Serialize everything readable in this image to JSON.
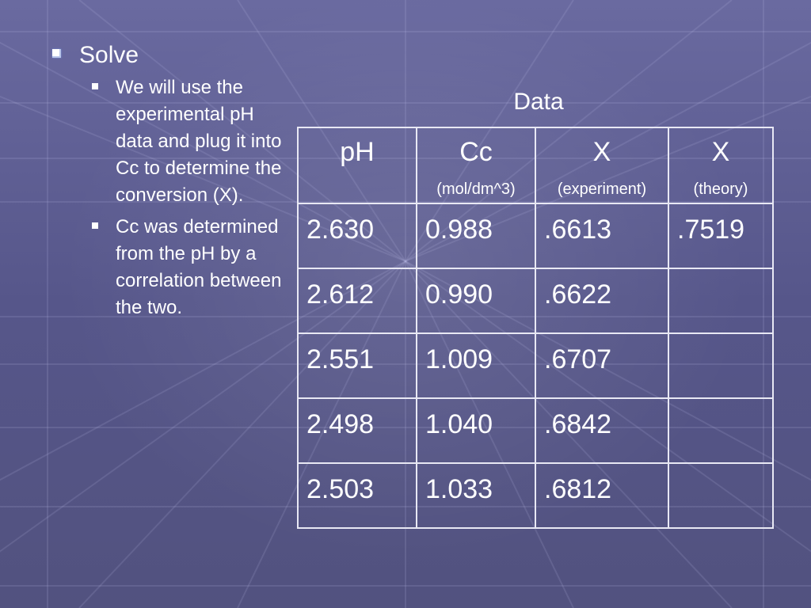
{
  "bullets": {
    "heading": "Solve",
    "items": [
      "We will use the experimental pH data and plug it into Cc to determine the conversion (X).",
      "Cc was determined from the pH by a correlation between the two."
    ]
  },
  "table": {
    "title": "Data",
    "headers": [
      {
        "main": "pH",
        "sub": ""
      },
      {
        "main": "Cc",
        "sub": "(mol/dm^3)"
      },
      {
        "main": "X",
        "sub": "(experiment)"
      },
      {
        "main": "X",
        "sub": "(theory)"
      }
    ],
    "rows": [
      [
        "2.630",
        "0.988",
        ".6613",
        ".7519"
      ],
      [
        "2.612",
        "0.990",
        ".6622",
        ""
      ],
      [
        "2.551",
        "1.009",
        ".6707",
        ""
      ],
      [
        "2.498",
        "1.040",
        ".6842",
        ""
      ],
      [
        "2.503",
        "1.033",
        ".6812",
        ""
      ]
    ]
  }
}
